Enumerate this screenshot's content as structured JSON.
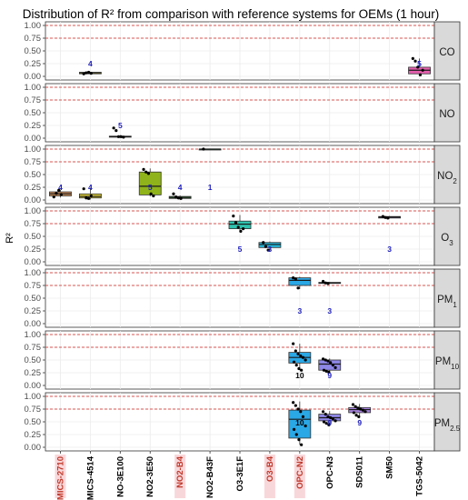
{
  "chart_data": {
    "type": "box",
    "title": "Distribution of R² from comparison with reference systems for OEMs (1 hour)",
    "ylabel": "R²",
    "ylim": [
      0,
      1
    ],
    "y_ticks": [
      "0.00",
      "0.25",
      "0.50",
      "0.75",
      "1.00"
    ],
    "reference_lines": [
      0.75,
      1.0
    ],
    "categories": [
      "MICS-2710",
      "MICS-4514",
      "NO-3E100",
      "NO2-3E50",
      "NO2-B4",
      "NO2-B43F",
      "O3-3E1F",
      "O3-B4",
      "OPC-N2",
      "OPC-N3",
      "SDS011",
      "SM50",
      "TGS-5042"
    ],
    "highlighted_categories": [
      "MICS-2710",
      "NO2-B4",
      "O3-B4",
      "OPC-N2"
    ],
    "panels": [
      {
        "label": "CO",
        "boxes": [
          {
            "category": "MICS-4514",
            "color": "#d9c93a",
            "q1": 0.05,
            "median": 0.07,
            "q3": 0.08,
            "whisker_low": 0.04,
            "whisker_high": 0.09,
            "points": [
              0.05,
              0.07,
              0.08,
              0.06
            ],
            "n": "4",
            "n_value": 0.25
          },
          {
            "category": "TGS-5042",
            "color": "#e45fae",
            "q1": 0.05,
            "median": 0.12,
            "q3": 0.18,
            "whisker_low": 0.02,
            "whisker_high": 0.35,
            "points": [
              0.35,
              0.3,
              0.18,
              0.03,
              0.12
            ],
            "n": "5",
            "n_value": 0.25
          }
        ]
      },
      {
        "label": "NO",
        "boxes": [
          {
            "category": "NO-3E100",
            "color": "#cccccc",
            "q1": 0.02,
            "median": 0.03,
            "q3": 0.04,
            "whisker_low": 0.01,
            "whisker_high": 0.06,
            "points": [
              0.2,
              0.15,
              0.03,
              0.03,
              0.02
            ],
            "n": "5",
            "n_value": 0.25
          }
        ]
      },
      {
        "label": "NO",
        "label_sub": "2",
        "boxes": [
          {
            "category": "MICS-2710",
            "color": "#d4955e",
            "q1": 0.08,
            "median": 0.12,
            "q3": 0.16,
            "whisker_low": 0.05,
            "whisker_high": 0.2,
            "points": [
              0.06,
              0.13,
              0.19,
              0.11
            ],
            "n": "4",
            "n_value": 0.25
          },
          {
            "category": "MICS-4514",
            "color": "#d9c93a",
            "q1": 0.04,
            "median": 0.07,
            "q3": 0.12,
            "whisker_low": 0.01,
            "whisker_high": 0.24,
            "points": [
              0.22,
              0.04,
              0.03,
              0.08
            ],
            "n": "4",
            "n_value": 0.25
          },
          {
            "category": "NO2-3E50",
            "color": "#8fb31a",
            "q1": 0.1,
            "median": 0.27,
            "q3": 0.55,
            "whisker_low": 0.07,
            "whisker_high": 0.62,
            "points": [
              0.6,
              0.55,
              0.52,
              0.12,
              0.08
            ],
            "n": "5",
            "n_value": 0.25
          },
          {
            "category": "NO2-B4",
            "color": "#3fa83f",
            "q1": 0.03,
            "median": 0.05,
            "q3": 0.07,
            "whisker_low": 0.02,
            "whisker_high": 0.09,
            "points": [
              0.12,
              0.06,
              0.04,
              0.03
            ],
            "n": "4",
            "n_value": 0.25
          },
          {
            "category": "NO2-B43F",
            "color": "#2e9e5a",
            "q1": 1.0,
            "median": 1.0,
            "q3": 1.0,
            "whisker_low": 1.0,
            "whisker_high": 1.0,
            "points": [
              1.0
            ],
            "n": "1",
            "n_value": 0.25
          }
        ]
      },
      {
        "label": "O",
        "label_sub": "3",
        "boxes": [
          {
            "category": "O3-3E1F",
            "color": "#2ec2ae",
            "q1": 0.65,
            "median": 0.74,
            "q3": 0.8,
            "whisker_low": 0.58,
            "whisker_high": 0.92,
            "points": [
              0.9,
              0.77,
              0.68,
              0.6,
              0.65
            ],
            "n": "5",
            "n_value": 0.25
          },
          {
            "category": "O3-B4",
            "color": "#27b5d6",
            "q1": 0.28,
            "median": 0.34,
            "q3": 0.38,
            "whisker_low": 0.22,
            "whisker_high": 0.4,
            "points": [
              0.38,
              0.3,
              0.23
            ],
            "n": "3",
            "n_value": 0.25
          },
          {
            "category": "SM50",
            "color": "#a783e0",
            "q1": 0.86,
            "median": 0.88,
            "q3": 0.89,
            "whisker_low": 0.85,
            "whisker_high": 0.9,
            "points": [
              0.89,
              0.87,
              0.86
            ],
            "n": "3",
            "n_value": 0.25
          }
        ]
      },
      {
        "label": "PM",
        "label_sub": "1",
        "boxes": [
          {
            "category": "OPC-N2",
            "color": "#2aa7e5",
            "q1": 0.75,
            "median": 0.85,
            "q3": 0.9,
            "whisker_low": 0.68,
            "whisker_high": 0.92,
            "points": [
              0.9,
              0.88,
              0.7
            ],
            "n": "3",
            "n_value": 0.25
          },
          {
            "category": "OPC-N3",
            "color": "#cccccc",
            "q1": 0.79,
            "median": 0.8,
            "q3": 0.81,
            "whisker_low": 0.78,
            "whisker_high": 0.82,
            "points": [
              0.83,
              0.8,
              0.79
            ],
            "n": "3",
            "n_value": 0.25
          }
        ]
      },
      {
        "label": "PM",
        "label_sub": "10",
        "boxes": [
          {
            "category": "OPC-N2",
            "color": "#2aa7e5",
            "q1": 0.44,
            "median": 0.55,
            "q3": 0.65,
            "whisker_low": 0.3,
            "whisker_high": 0.82,
            "points": [
              0.82,
              0.68,
              0.62,
              0.58,
              0.55,
              0.5,
              0.46,
              0.4,
              0.33,
              0.3
            ],
            "n": "10",
            "n_value": 0.2
          },
          {
            "category": "OPC-N3",
            "color": "#8f87e6",
            "q1": 0.3,
            "median": 0.42,
            "q3": 0.5,
            "whisker_low": 0.25,
            "whisker_high": 0.53,
            "points": [
              0.52,
              0.5,
              0.48,
              0.45,
              0.4,
              0.35,
              0.3,
              0.28,
              0.26
            ],
            "n": "9",
            "n_value": 0.2
          }
        ]
      },
      {
        "label": "PM",
        "label_sub": "2.5",
        "boxes": [
          {
            "category": "OPC-N2",
            "color": "#2aa7e5",
            "q1": 0.18,
            "median": 0.55,
            "q3": 0.73,
            "whisker_low": 0.05,
            "whisker_high": 0.9,
            "points": [
              0.88,
              0.82,
              0.75,
              0.7,
              0.6,
              0.42,
              0.35,
              0.25,
              0.15,
              0.05
            ],
            "n": "10",
            "n_value": 0.48
          },
          {
            "category": "OPC-N3",
            "color": "#8f87e6",
            "q1": 0.52,
            "median": 0.58,
            "q3": 0.65,
            "whisker_low": 0.44,
            "whisker_high": 0.71,
            "points": [
              0.7,
              0.65,
              0.6,
              0.58,
              0.56,
              0.52,
              0.5,
              0.47,
              0.44
            ],
            "n": "9",
            "n_value": 0.48
          },
          {
            "category": "SDS011",
            "color": "#a783e0",
            "q1": 0.68,
            "median": 0.74,
            "q3": 0.78,
            "whisker_low": 0.6,
            "whisker_high": 0.85,
            "points": [
              0.84,
              0.8,
              0.77,
              0.75,
              0.73,
              0.7,
              0.68,
              0.63,
              0.6
            ],
            "n": "9",
            "n_value": 0.48
          }
        ]
      }
    ]
  }
}
